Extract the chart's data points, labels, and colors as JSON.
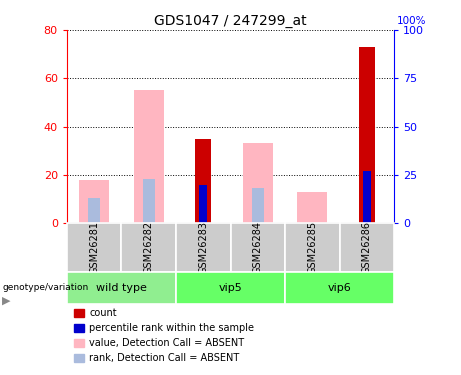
{
  "title": "GDS1047 / 247299_at",
  "samples": [
    "GSM26281",
    "GSM26282",
    "GSM26283",
    "GSM26284",
    "GSM26285",
    "GSM26286"
  ],
  "value_absent": [
    18,
    55,
    0,
    33,
    13,
    0
  ],
  "rank_absent": [
    13,
    23,
    0,
    18,
    0,
    0
  ],
  "count_value": [
    0,
    0,
    35,
    0,
    0,
    73
  ],
  "count_rank": [
    0,
    0,
    20,
    0,
    0,
    27
  ],
  "ylim_left": [
    0,
    80
  ],
  "ylim_right": [
    0,
    100
  ],
  "yticks_left": [
    0,
    20,
    40,
    60,
    80
  ],
  "yticks_right": [
    0,
    25,
    50,
    75,
    100
  ],
  "value_absent_color": "#FFB6C1",
  "rank_absent_color": "#AABBDD",
  "count_color": "#CC0000",
  "percentile_color": "#0000CC",
  "bg_sample_color": "#CCCCCC",
  "group_defs": [
    {
      "name": "wild type",
      "start": 0,
      "end": 1,
      "color": "#90EE90"
    },
    {
      "name": "vip5",
      "start": 2,
      "end": 3,
      "color": "#66FF66"
    },
    {
      "name": "vip6",
      "start": 4,
      "end": 5,
      "color": "#66FF66"
    }
  ],
  "legend_items": [
    {
      "label": "count",
      "color": "#CC0000"
    },
    {
      "label": "percentile rank within the sample",
      "color": "#0000CC"
    },
    {
      "label": "value, Detection Call = ABSENT",
      "color": "#FFB6C1"
    },
    {
      "label": "rank, Detection Call = ABSENT",
      "color": "#AABBDD"
    }
  ]
}
